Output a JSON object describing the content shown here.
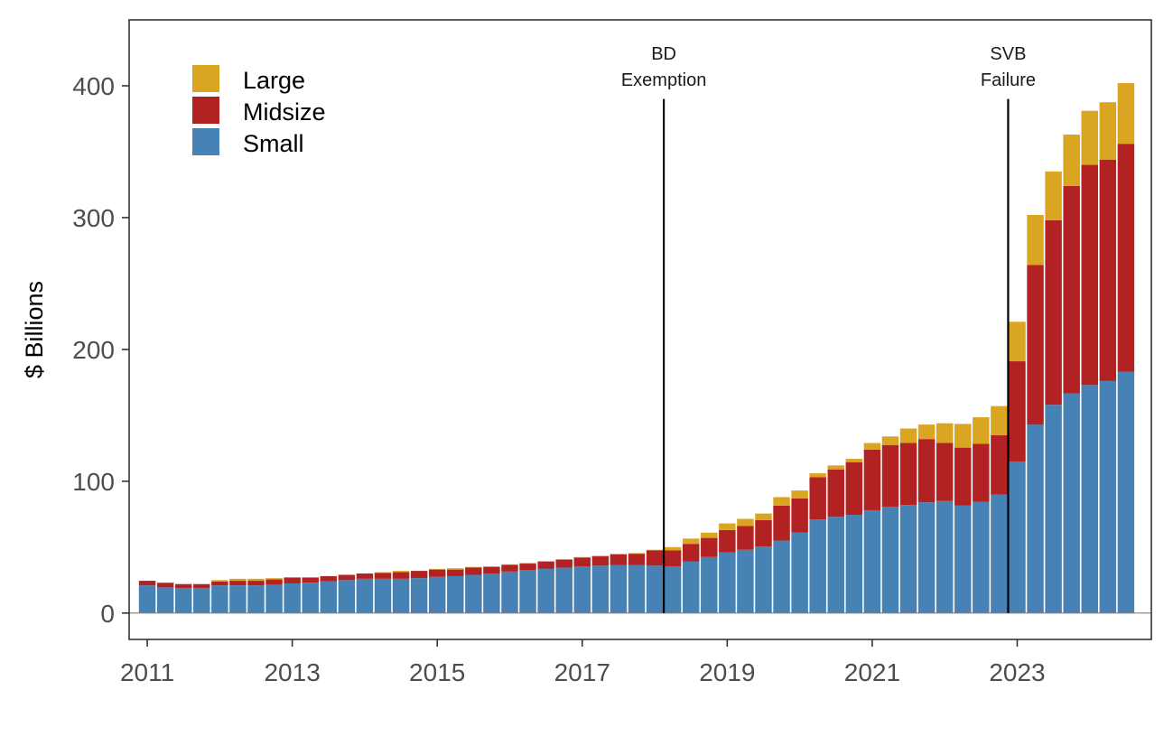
{
  "chart_data": {
    "type": "bar",
    "stacked": true,
    "title": "",
    "xlabel": "",
    "ylabel": "$ Billions",
    "ylim": [
      -20,
      450
    ],
    "xlim": [
      2010.75,
      2024.85
    ],
    "y_ticks": [
      "0",
      "100",
      "200",
      "300",
      "400"
    ],
    "x_ticks": [
      "2011",
      "2013",
      "2015",
      "2017",
      "2019",
      "2021",
      "2023"
    ],
    "legend_position": "top-left",
    "grid": false,
    "colors": {
      "Large": "#DAA520",
      "Midsize": "#B22222",
      "Small": "#4682B4"
    },
    "annotations": [
      {
        "x": 2018.125,
        "line1": "BD",
        "line2": "Exemption"
      },
      {
        "x": 2022.875,
        "line1": "SVB",
        "line2": "Failure"
      }
    ],
    "quarters": [
      "2011Q1",
      "2011Q2",
      "2011Q3",
      "2011Q4",
      "2012Q1",
      "2012Q2",
      "2012Q3",
      "2012Q4",
      "2013Q1",
      "2013Q2",
      "2013Q3",
      "2013Q4",
      "2014Q1",
      "2014Q2",
      "2014Q3",
      "2014Q4",
      "2015Q1",
      "2015Q2",
      "2015Q3",
      "2015Q4",
      "2016Q1",
      "2016Q2",
      "2016Q3",
      "2016Q4",
      "2017Q1",
      "2017Q2",
      "2017Q3",
      "2017Q4",
      "2018Q1",
      "2018Q2",
      "2018Q3",
      "2018Q4",
      "2019Q1",
      "2019Q2",
      "2019Q3",
      "2019Q4",
      "2020Q1",
      "2020Q2",
      "2020Q3",
      "2020Q4",
      "2021Q1",
      "2021Q2",
      "2021Q3",
      "2021Q4",
      "2022Q1",
      "2022Q2",
      "2022Q3",
      "2022Q4",
      "2023Q1",
      "2023Q2",
      "2023Q3",
      "2023Q4",
      "2024Q1",
      "2024Q2",
      "2024Q3"
    ],
    "x": [
      2011.0,
      2011.25,
      2011.5,
      2011.75,
      2012.0,
      2012.25,
      2012.5,
      2012.75,
      2013.0,
      2013.25,
      2013.5,
      2013.75,
      2014.0,
      2014.25,
      2014.5,
      2014.75,
      2015.0,
      2015.25,
      2015.5,
      2015.75,
      2016.0,
      2016.25,
      2016.5,
      2016.75,
      2017.0,
      2017.25,
      2017.5,
      2017.75,
      2018.0,
      2018.25,
      2018.5,
      2018.75,
      2019.0,
      2019.25,
      2019.5,
      2019.75,
      2020.0,
      2020.25,
      2020.5,
      2020.75,
      2021.0,
      2021.25,
      2021.5,
      2021.75,
      2022.0,
      2022.25,
      2022.5,
      2022.75,
      2023.0,
      2023.25,
      2023.5,
      2023.75,
      2024.0,
      2024.25,
      2024.5
    ],
    "series": [
      {
        "name": "Small",
        "values": [
          21,
          19.5,
          19,
          19,
          21,
          21,
          21,
          21.5,
          22.5,
          23,
          24,
          25,
          26,
          26,
          26,
          26.5,
          27.5,
          28,
          29,
          30,
          31.5,
          32.5,
          33.5,
          34.5,
          35.5,
          36,
          36.5,
          36.5,
          36,
          35.5,
          39,
          42.5,
          46,
          48,
          50.5,
          55,
          61,
          71,
          73,
          74.5,
          78,
          80.5,
          82,
          84,
          85,
          81.5,
          84.5,
          90,
          115,
          143,
          158,
          166.5,
          173,
          176,
          183
        ]
      },
      {
        "name": "Midsize",
        "values": [
          3.5,
          3.5,
          3,
          3,
          3,
          3.5,
          3.5,
          4,
          4.5,
          4,
          4,
          4,
          4,
          4.5,
          5,
          5.5,
          5.5,
          5,
          5.5,
          5,
          5,
          5,
          5.5,
          6,
          6.5,
          7,
          8,
          8.5,
          11.5,
          12,
          13.5,
          14.5,
          17,
          18,
          20,
          26.5,
          26,
          32,
          36,
          40,
          46,
          47,
          47,
          48,
          44,
          44,
          44,
          45,
          76,
          121,
          140,
          157.5,
          167,
          168,
          173
        ]
      },
      {
        "name": "Large",
        "values": [
          0,
          0,
          0,
          0,
          1,
          1.5,
          1.5,
          1,
          0,
          0,
          0,
          0,
          0,
          0.5,
          1,
          0,
          0.5,
          1,
          0.5,
          0.5,
          0.5,
          0.5,
          0.5,
          0.5,
          0.5,
          0.5,
          0.5,
          0.5,
          0.5,
          2.5,
          4,
          4,
          5,
          5.5,
          5,
          6.5,
          6,
          3,
          3,
          2.5,
          5,
          6.5,
          11,
          11,
          15,
          18,
          20,
          22,
          30,
          38,
          37,
          39,
          41,
          43.5,
          46
        ]
      }
    ]
  }
}
